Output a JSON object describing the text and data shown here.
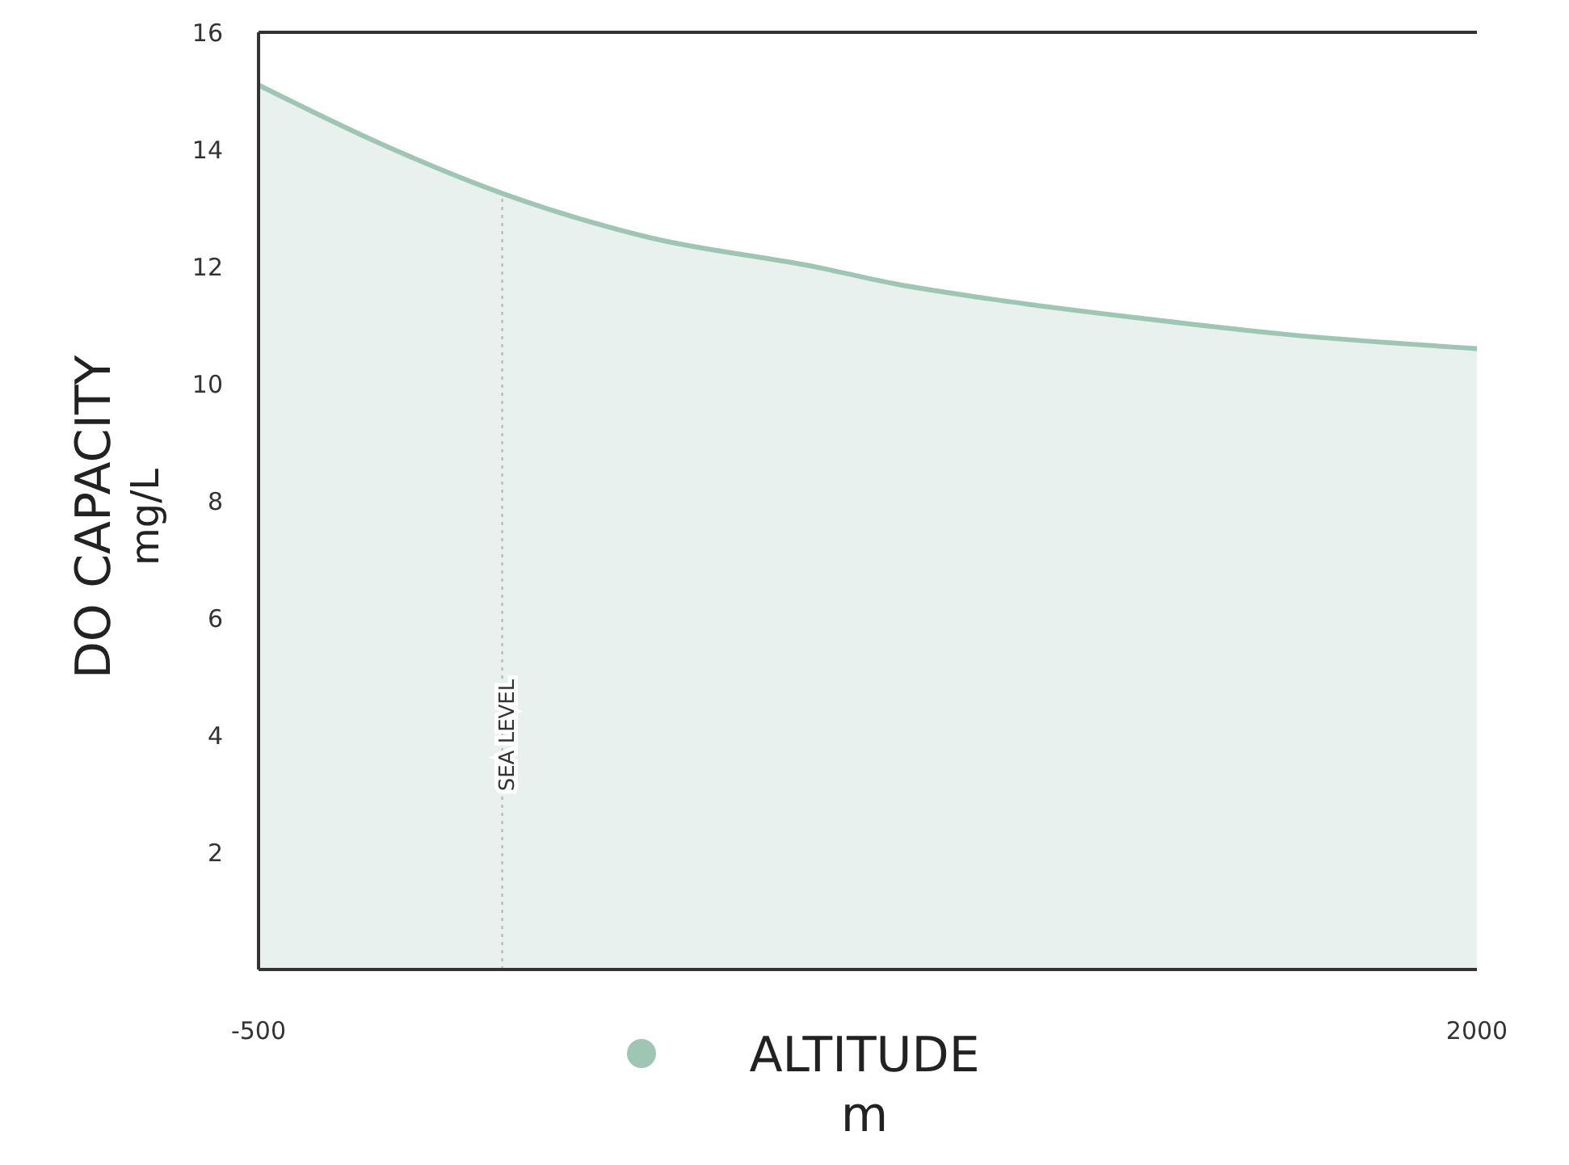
{
  "chart_data": {
    "type": "area",
    "xlabel": "ALTITUDE\nm",
    "ylabel": "DO CAPACITY\nmg/L",
    "x": [
      -500,
      -250,
      0,
      300,
      640,
      810,
      1000,
      1330,
      1600,
      2000
    ],
    "series": [
      {
        "color": "#9fc5b4",
        "values": [
          15.1,
          14.1,
          13.25,
          12.5,
          12.0,
          11.7,
          11.45,
          11.1,
          10.85,
          10.6
        ]
      }
    ],
    "xlim": [
      -500,
      2000
    ],
    "xticks": [
      -500,
      2000
    ],
    "ylim": [
      0,
      16
    ],
    "yticks": [
      2,
      4,
      6,
      8,
      10,
      12,
      14,
      16
    ],
    "ref_lines": [
      {
        "axis": "x",
        "value": 0,
        "label": "SEA LEVEL",
        "line_style": "dotted",
        "color": "#bbbbbb"
      }
    ]
  }
}
